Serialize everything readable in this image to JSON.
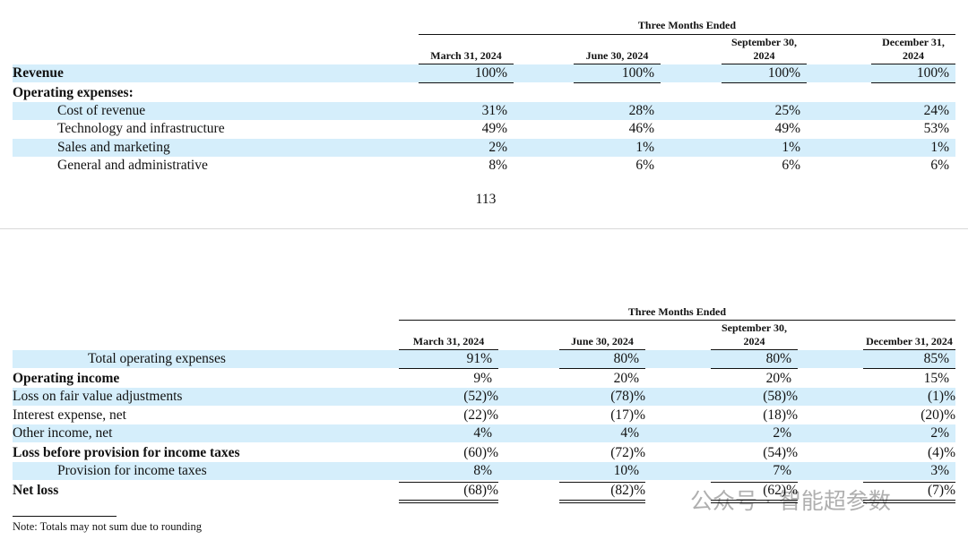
{
  "table1": {
    "header": "Three Months Ended",
    "columns": [
      "March 31, 2024",
      "June 30, 2024",
      "September 30, 2024",
      "December 31, 2024"
    ],
    "rows": [
      {
        "label": "Revenue",
        "values": [
          "100%",
          "100%",
          "100%",
          "100%"
        ]
      },
      {
        "label": "Operating expenses:"
      },
      {
        "label": "Cost of revenue",
        "values": [
          "31%",
          "28%",
          "25%",
          "24%"
        ]
      },
      {
        "label": "Technology and infrastructure",
        "values": [
          "49%",
          "46%",
          "49%",
          "53%"
        ]
      },
      {
        "label": "Sales and marketing",
        "values": [
          "2%",
          "1%",
          "1%",
          "1%"
        ]
      },
      {
        "label": "General and administrative",
        "values": [
          "8%",
          "6%",
          "6%",
          "6%"
        ]
      }
    ]
  },
  "page_number": "113",
  "table2": {
    "header": "Three Months Ended",
    "columns": [
      "March 31, 2024",
      "June 30, 2024",
      "September 30, 2024",
      "December 31, 2024"
    ],
    "rows": [
      {
        "label": "Total operating expenses",
        "values": [
          "91%",
          "80%",
          "80%",
          "85%"
        ]
      },
      {
        "label": "Operating income",
        "values": [
          "9%",
          "20%",
          "20%",
          "15%"
        ]
      },
      {
        "label": "Loss on fair value adjustments",
        "values": [
          "(52)%",
          "(78)%",
          "(58)%",
          "(1)%"
        ]
      },
      {
        "label": "Interest expense, net",
        "values": [
          "(22)%",
          "(17)%",
          "(18)%",
          "(20)%"
        ]
      },
      {
        "label": "Other income, net",
        "values": [
          "4%",
          "4%",
          "2%",
          "2%"
        ]
      },
      {
        "label": "Loss before provision for income taxes",
        "values": [
          "(60)%",
          "(72)%",
          "(54)%",
          "(4)%"
        ]
      },
      {
        "label": "Provision for income taxes",
        "values": [
          "8%",
          "10%",
          "7%",
          "3%"
        ]
      },
      {
        "label": "Net loss",
        "values": [
          "(68)%",
          "(82)%",
          "(62)%",
          "(7)%"
        ]
      }
    ]
  },
  "note": "Note: Totals may not sum due to rounding",
  "watermark": "公众号 · 智能超参数"
}
